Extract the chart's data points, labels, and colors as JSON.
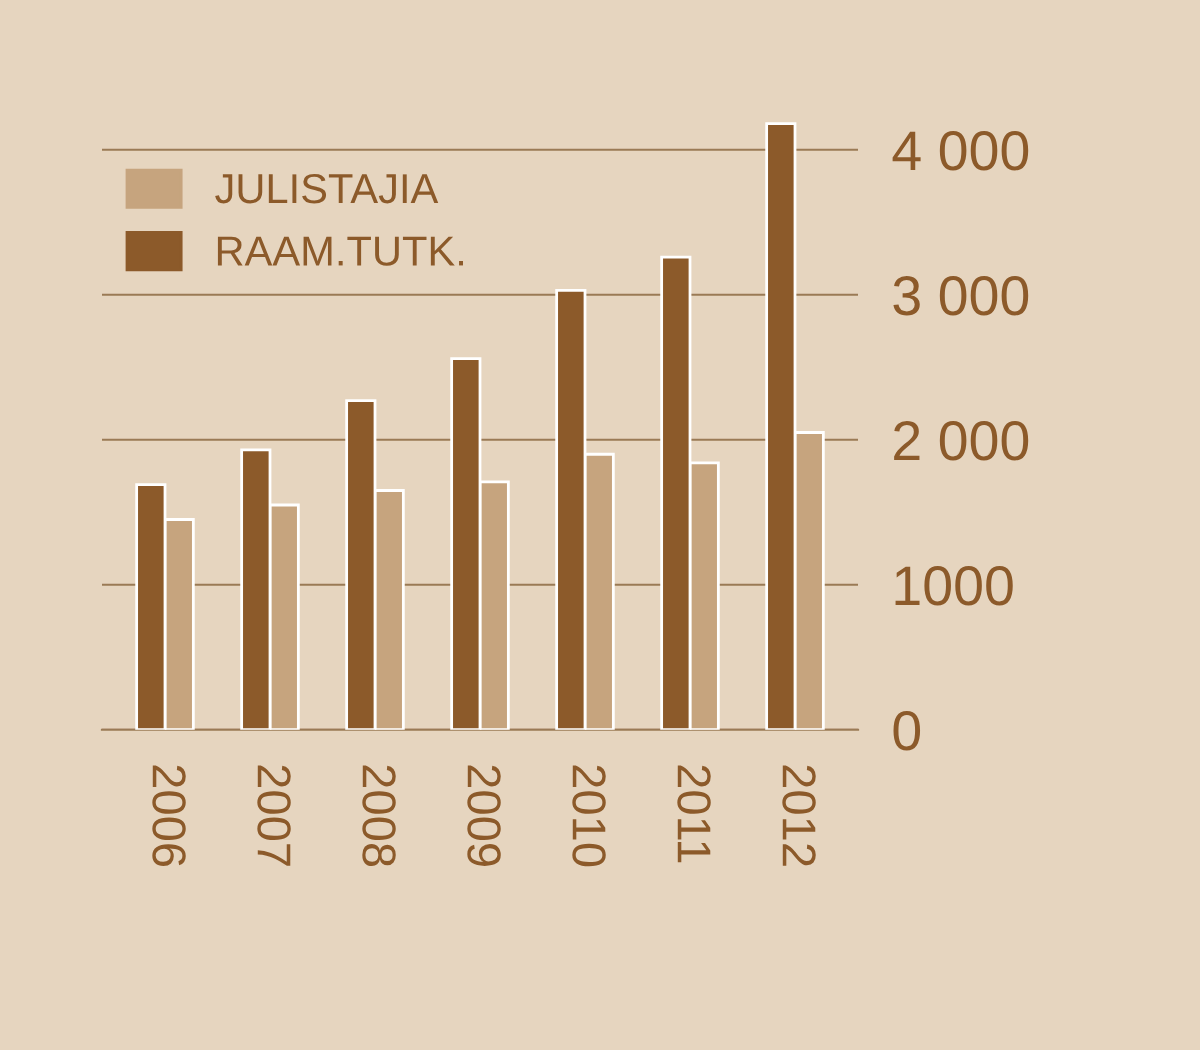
{
  "chart_data": {
    "type": "bar",
    "categories": [
      "2006",
      "2007",
      "2008",
      "2009",
      "2010",
      "2011",
      "2012"
    ],
    "series": [
      {
        "name": "JULISTAJIA",
        "color": "#c6a47e",
        "values": [
          1450,
          1550,
          1650,
          1710,
          1900,
          1840,
          2050
        ]
      },
      {
        "name": "RAAM.TUTK.",
        "color": "#8c5a2a",
        "values": [
          1690,
          1930,
          2270,
          2560,
          3030,
          3260,
          4180
        ]
      }
    ],
    "ylim": [
      0,
      4200
    ],
    "yticks": [
      {
        "value": 4000,
        "label": "4 000"
      },
      {
        "value": 3000,
        "label": "3 000"
      },
      {
        "value": 2000,
        "label": "2 000"
      },
      1000,
      0
    ],
    "grid": "y",
    "legend": "top left"
  }
}
